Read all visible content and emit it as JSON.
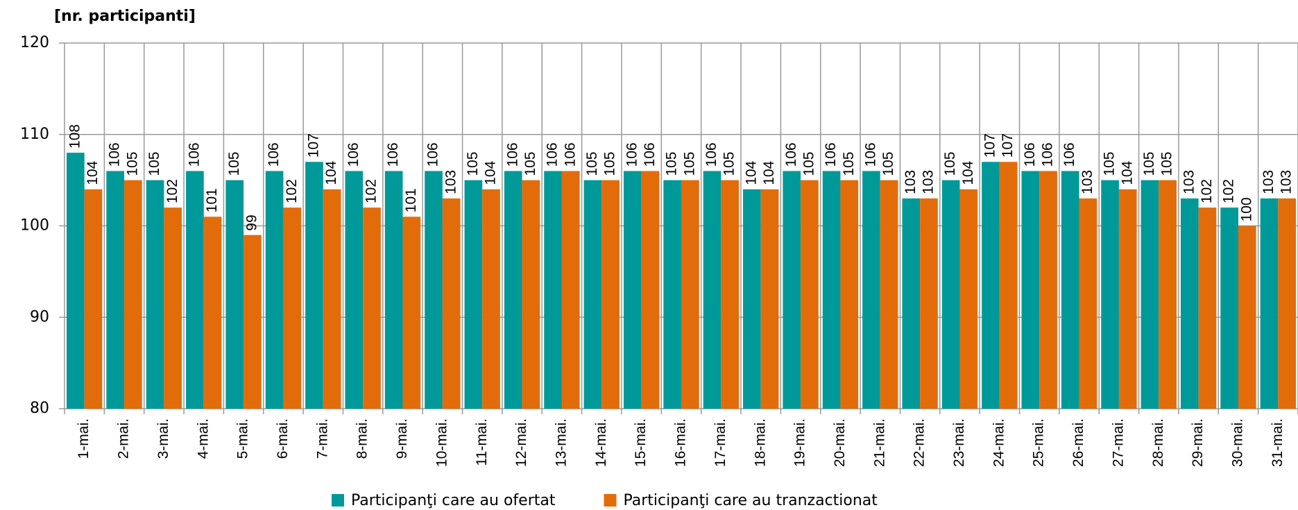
{
  "chart_data": {
    "type": "bar",
    "title": "[nr. participanti]",
    "categories": [
      "1-mai.",
      "2-mai.",
      "3-mai.",
      "4-mai.",
      "5-mai.",
      "6-mai.",
      "7-mai.",
      "8-mai.",
      "9-mai.",
      "10-mai.",
      "11-mai.",
      "12-mai.",
      "13-mai.",
      "14-mai.",
      "15-mai.",
      "16-mai.",
      "17-mai.",
      "18-mai.",
      "19-mai.",
      "20-mai.",
      "21-mai.",
      "22-mai.",
      "23-mai.",
      "24-mai.",
      "25-mai.",
      "26-mai.",
      "27-mai.",
      "28-mai.",
      "29-mai.",
      "30-mai.",
      "31-mai."
    ],
    "series": [
      {
        "name": "Participanţi care au ofertat",
        "color": "#009999",
        "values": [
          108,
          106,
          105,
          106,
          105,
          106,
          107,
          106,
          106,
          106,
          105,
          106,
          106,
          105,
          106,
          105,
          106,
          104,
          106,
          106,
          106,
          103,
          105,
          107,
          106,
          106,
          105,
          105,
          103,
          102,
          103
        ]
      },
      {
        "name": "Participanţi care au tranzactionat",
        "color": "#e36c0a",
        "values": [
          104,
          105,
          102,
          101,
          99,
          102,
          104,
          102,
          101,
          103,
          104,
          105,
          106,
          105,
          106,
          105,
          105,
          104,
          105,
          105,
          105,
          103,
          104,
          107,
          106,
          103,
          104,
          105,
          102,
          100,
          103
        ]
      }
    ],
    "ylim": [
      80,
      120
    ],
    "yticks": [
      80,
      90,
      100,
      110,
      120
    ],
    "grid": true
  }
}
